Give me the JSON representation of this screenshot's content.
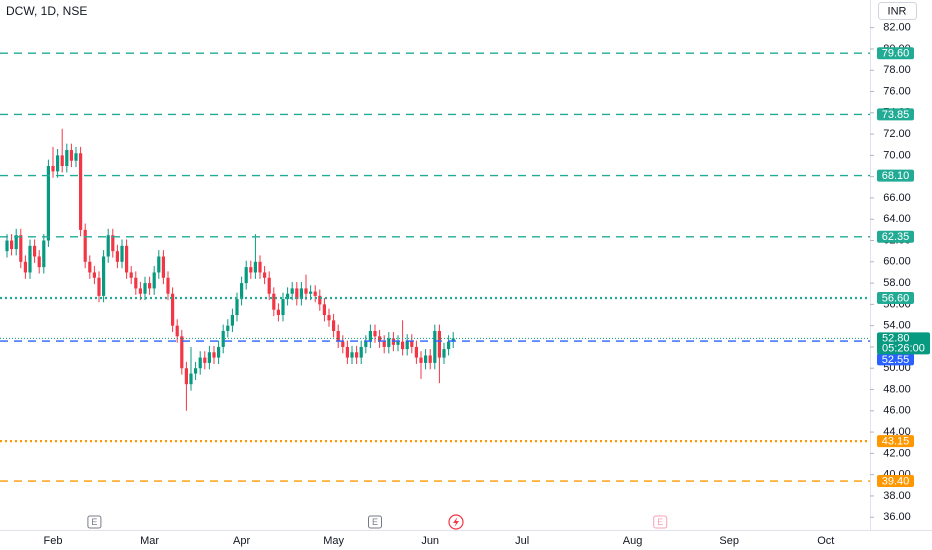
{
  "chart_data": {
    "type": "candlestick",
    "title": "DCW, 1D, NSE",
    "currency": "INR",
    "up_color": "#089981",
    "down_color": "#f23645",
    "categories": [
      null,
      null,
      null,
      null,
      null,
      null,
      null,
      null,
      null,
      null,
      "Feb",
      null,
      null,
      null,
      null,
      null,
      null,
      null,
      null,
      null,
      null,
      null,
      null,
      null,
      null,
      null,
      null,
      null,
      null,
      null,
      null,
      "Mar",
      null,
      null,
      null,
      null,
      null,
      null,
      null,
      null,
      null,
      null,
      null,
      null,
      null,
      null,
      null,
      null,
      null,
      null,
      null,
      "Apr",
      null,
      null,
      null,
      null,
      null,
      null,
      null,
      null,
      null,
      null,
      null,
      null,
      null,
      null,
      null,
      null,
      null,
      null,
      null,
      "May",
      null,
      null,
      null,
      null,
      null,
      null,
      null,
      null,
      null,
      null,
      null,
      null,
      null,
      null,
      null,
      null,
      null,
      null,
      null,
      null,
      "Jun",
      null,
      null,
      null,
      null,
      null,
      null,
      null,
      null,
      null,
      null,
      null,
      null,
      null,
      null,
      null,
      null,
      null,
      null,
      null,
      "Jul",
      null,
      null,
      null,
      null,
      null,
      null,
      null,
      null,
      null,
      null,
      null,
      null,
      null,
      null,
      null,
      null,
      null,
      null,
      null,
      null,
      null,
      null,
      null,
      "Aug",
      null,
      null,
      null,
      null,
      null,
      null,
      null,
      null,
      null,
      null,
      null,
      null,
      null,
      null,
      null,
      null,
      null,
      null,
      null,
      null,
      "Sep",
      null,
      null,
      null,
      null,
      null,
      null,
      null,
      null,
      null,
      null,
      null,
      null,
      null,
      null,
      null,
      null,
      null,
      null,
      null,
      null,
      "Oct",
      null,
      null,
      null,
      null,
      null,
      null
    ],
    "open": [
      61.0,
      62.0,
      61.2,
      62.5,
      60.0,
      59.0,
      61.5,
      60.5,
      59.5,
      62.0,
      69.0,
      68.5,
      70.0,
      69.0,
      70.5,
      69.5,
      70.2,
      63.0,
      60.0,
      59.0,
      58.5,
      56.8,
      60.5,
      62.5,
      61.0,
      60.0,
      61.5,
      59.0,
      58.5,
      57.5,
      57.0,
      58.0,
      57.5,
      59.0,
      60.5,
      58.5,
      57.0,
      54.0,
      53.0,
      50.0,
      48.5,
      49.5,
      50.0,
      51.0,
      50.5,
      51.5,
      51.0,
      52.0,
      53.5,
      54.0,
      55.0,
      56.5,
      58.0,
      59.5,
      59.0,
      60.0,
      59.0,
      58.5,
      57.0,
      55.5,
      55.0,
      56.5,
      57.0,
      57.5,
      56.5,
      57.5,
      57.0,
      57.2,
      56.8,
      56.0,
      55.0,
      54.5,
      53.5,
      52.5,
      52.0,
      51.0,
      51.5,
      51.0,
      52.0,
      52.5,
      53.5,
      53.0,
      52.5,
      52.0,
      52.8,
      52.2,
      52.5,
      51.8,
      52.6,
      52.0,
      51.0,
      50.5,
      51.2,
      50.5,
      53.5,
      51.0,
      51.8,
      52.5,
      null,
      null,
      null,
      null,
      null,
      null,
      null,
      null,
      null,
      null,
      null,
      null,
      null,
      null,
      null,
      null,
      null,
      null,
      null,
      null,
      null,
      null,
      null,
      null,
      null,
      null,
      null,
      null,
      null,
      null,
      null,
      null,
      null,
      null,
      null,
      null,
      null,
      null,
      null,
      null,
      null,
      null,
      null,
      null,
      null,
      null,
      null,
      null,
      null,
      null,
      null,
      null,
      null,
      null,
      null,
      null,
      null,
      null,
      null,
      null,
      null,
      null,
      null,
      null,
      null,
      null,
      null,
      null,
      null,
      null,
      null,
      null,
      null,
      null,
      null,
      null,
      null,
      null,
      null,
      null,
      null,
      null,
      null,
      null,
      null,
      null,
      null
    ],
    "high": [
      62.6,
      62.6,
      63.1,
      63.1,
      60.6,
      62.1,
      62.1,
      61.1,
      62.6,
      69.6,
      70.8,
      70.6,
      72.5,
      71.1,
      71.1,
      70.8,
      70.8,
      63.6,
      60.6,
      59.6,
      59.1,
      61.1,
      63.1,
      63.1,
      61.6,
      62.1,
      62.1,
      59.6,
      59.1,
      58.1,
      58.6,
      58.6,
      59.6,
      61.1,
      61.1,
      59.1,
      57.6,
      54.6,
      53.6,
      50.6,
      52.0,
      50.6,
      51.6,
      51.6,
      52.1,
      52.1,
      52.6,
      54.1,
      54.6,
      55.6,
      57.1,
      58.6,
      60.1,
      60.1,
      62.6,
      60.6,
      59.6,
      59.1,
      57.6,
      56.1,
      57.1,
      57.6,
      58.1,
      58.1,
      58.1,
      58.8,
      57.8,
      57.8,
      57.4,
      56.6,
      55.6,
      55.1,
      54.1,
      53.1,
      52.6,
      52.1,
      52.1,
      52.6,
      53.1,
      54.1,
      54.1,
      53.6,
      53.1,
      53.4,
      53.4,
      53.1,
      54.5,
      53.2,
      53.2,
      52.6,
      51.6,
      51.8,
      51.8,
      54.1,
      54.1,
      52.4,
      53.1,
      53.4,
      null,
      null,
      null,
      null,
      null,
      null,
      null,
      null,
      null,
      null,
      null,
      null,
      null,
      null,
      null,
      null,
      null,
      null,
      null,
      null,
      null,
      null,
      null,
      null,
      null,
      null,
      null,
      null,
      null,
      null,
      null,
      null,
      null,
      null,
      null,
      null,
      null,
      null,
      null,
      null,
      null,
      null,
      null,
      null,
      null,
      null,
      null,
      null,
      null,
      null,
      null,
      null,
      null,
      null,
      null,
      null,
      null,
      null,
      null,
      null,
      null,
      null,
      null,
      null,
      null,
      null,
      null,
      null,
      null,
      null,
      null,
      null,
      null,
      null,
      null,
      null,
      null,
      null,
      null,
      null,
      null,
      null,
      null,
      null,
      null,
      null,
      null
    ],
    "low": [
      60.4,
      60.6,
      60.6,
      59.4,
      58.4,
      58.4,
      59.9,
      58.9,
      58.9,
      61.4,
      67.9,
      67.9,
      68.4,
      68.4,
      68.9,
      68.9,
      62.4,
      59.4,
      58.4,
      57.9,
      56.2,
      56.2,
      59.9,
      60.4,
      59.4,
      59.4,
      58.4,
      57.9,
      56.9,
      56.4,
      56.4,
      56.9,
      56.9,
      58.4,
      57.9,
      56.4,
      53.4,
      52.4,
      49.4,
      46.0,
      47.9,
      48.9,
      49.4,
      49.9,
      49.9,
      50.4,
      50.4,
      51.4,
      52.9,
      53.4,
      54.4,
      55.9,
      57.4,
      58.4,
      58.4,
      58.4,
      57.9,
      56.4,
      54.9,
      54.4,
      54.4,
      55.9,
      56.4,
      55.9,
      55.9,
      56.4,
      56.4,
      56.2,
      55.4,
      54.4,
      53.9,
      52.9,
      51.9,
      51.4,
      50.4,
      50.4,
      50.4,
      50.4,
      51.4,
      51.9,
      52.4,
      51.9,
      51.4,
      51.4,
      51.6,
      51.6,
      51.2,
      51.2,
      51.4,
      50.4,
      49.0,
      49.9,
      49.9,
      49.9,
      48.6,
      50.4,
      51.2,
      51.9,
      null,
      null,
      null,
      null,
      null,
      null,
      null,
      null,
      null,
      null,
      null,
      null,
      null,
      null,
      null,
      null,
      null,
      null,
      null,
      null,
      null,
      null,
      null,
      null,
      null,
      null,
      null,
      null,
      null,
      null,
      null,
      null,
      null,
      null,
      null,
      null,
      null,
      null,
      null,
      null,
      null,
      null,
      null,
      null,
      null,
      null,
      null,
      null,
      null,
      null,
      null,
      null,
      null,
      null,
      null,
      null,
      null,
      null,
      null,
      null,
      null,
      null,
      null,
      null,
      null,
      null,
      null,
      null,
      null,
      null,
      null,
      null,
      null,
      null,
      null,
      null,
      null,
      null,
      null,
      null,
      null,
      null,
      null,
      null,
      null,
      null,
      null
    ],
    "close": [
      62.0,
      61.2,
      62.5,
      60.0,
      59.0,
      61.5,
      60.5,
      59.5,
      62.0,
      69.0,
      68.5,
      70.0,
      69.0,
      70.5,
      69.5,
      70.2,
      63.0,
      60.0,
      59.0,
      58.5,
      56.8,
      60.5,
      62.5,
      61.0,
      60.0,
      61.5,
      59.0,
      58.5,
      57.5,
      57.0,
      58.0,
      57.5,
      59.0,
      60.5,
      58.5,
      57.0,
      54.0,
      53.0,
      50.0,
      48.5,
      49.5,
      50.0,
      51.0,
      50.5,
      51.5,
      51.0,
      52.0,
      53.5,
      54.0,
      55.0,
      56.5,
      58.0,
      59.5,
      59.0,
      60.0,
      59.0,
      58.5,
      57.0,
      55.5,
      55.0,
      56.5,
      57.0,
      57.5,
      56.5,
      57.5,
      57.0,
      57.2,
      56.8,
      56.0,
      55.0,
      54.5,
      53.5,
      52.5,
      52.0,
      51.0,
      51.5,
      51.0,
      52.0,
      52.5,
      53.5,
      53.0,
      52.5,
      52.0,
      52.8,
      52.2,
      52.5,
      51.8,
      52.6,
      52.0,
      51.0,
      50.5,
      51.2,
      50.5,
      53.5,
      51.0,
      51.8,
      52.5,
      52.8,
      null,
      null,
      null,
      null,
      null,
      null,
      null,
      null,
      null,
      null,
      null,
      null,
      null,
      null,
      null,
      null,
      null,
      null,
      null,
      null,
      null,
      null,
      null,
      null,
      null,
      null,
      null,
      null,
      null,
      null,
      null,
      null,
      null,
      null,
      null,
      null,
      null,
      null,
      null,
      null,
      null,
      null,
      null,
      null,
      null,
      null,
      null,
      null,
      null,
      null,
      null,
      null,
      null,
      null,
      null,
      null,
      null,
      null,
      null,
      null,
      null,
      null,
      null,
      null,
      null,
      null,
      null,
      null,
      null,
      null,
      null,
      null,
      null,
      null,
      null,
      null,
      null,
      null,
      null,
      null,
      null,
      null,
      null,
      null,
      null,
      null,
      null
    ],
    "ylim": [
      34.8,
      84.6
    ],
    "yticks": [
      {
        "value": 36,
        "label": "36.00"
      },
      {
        "value": 38,
        "label": "38.00"
      },
      {
        "value": 40,
        "label": "40.00"
      },
      {
        "value": 42,
        "label": "42.00"
      },
      {
        "value": 44,
        "label": "44.00"
      },
      {
        "value": 46,
        "label": "46.00"
      },
      {
        "value": 48,
        "label": "48.00"
      },
      {
        "value": 50,
        "label": "50.00"
      },
      {
        "value": 52,
        "label": "52.00"
      },
      {
        "value": 54,
        "label": "54.00"
      },
      {
        "value": 56,
        "label": "56.00"
      },
      {
        "value": 58,
        "label": "58.00"
      },
      {
        "value": 60,
        "label": "60.00"
      },
      {
        "value": 62,
        "label": "62.00"
      },
      {
        "value": 64,
        "label": "64.00"
      },
      {
        "value": 66,
        "label": "66.00"
      },
      {
        "value": 68,
        "label": "68.00"
      },
      {
        "value": 70,
        "label": "70.00"
      },
      {
        "value": 72,
        "label": "72.00"
      },
      {
        "value": 74,
        "label": "74.00"
      },
      {
        "value": 76,
        "label": "76.00"
      },
      {
        "value": 78,
        "label": "78.00"
      },
      {
        "value": 80,
        "label": "80.00"
      },
      {
        "value": 82,
        "label": "82.00"
      }
    ],
    "levels": [
      {
        "value": 79.6,
        "label": "79.60",
        "color": "#22ab94",
        "style": "dashed"
      },
      {
        "value": 73.85,
        "label": "73.85",
        "color": "#22ab94",
        "style": "dashed"
      },
      {
        "value": 68.1,
        "label": "68.10",
        "color": "#22ab94",
        "style": "dashed"
      },
      {
        "value": 62.35,
        "label": "62.35",
        "color": "#22ab94",
        "style": "dashed"
      },
      {
        "value": 56.6,
        "label": "56.60",
        "color": "#22ab94",
        "style": "dotted"
      },
      {
        "value": 52.55,
        "label": "52.55",
        "color": "#2962ff",
        "style": "dashed"
      },
      {
        "value": 43.15,
        "label": "43.15",
        "color": "#ff9800",
        "style": "dotted"
      },
      {
        "value": 39.4,
        "label": "39.40",
        "color": "#ff9800",
        "style": "dashed"
      }
    ],
    "last_price": {
      "value": 52.8,
      "label": "52.80",
      "countdown": "05:26:00",
      "color": "#089981"
    },
    "events": [
      {
        "label": "E",
        "category_index": 19,
        "color": "#787b86"
      },
      {
        "label": "E",
        "category_index": 80,
        "color": "#787b86"
      },
      {
        "label": "E",
        "category_index": 142,
        "color": "#f7a1b5"
      }
    ]
  }
}
